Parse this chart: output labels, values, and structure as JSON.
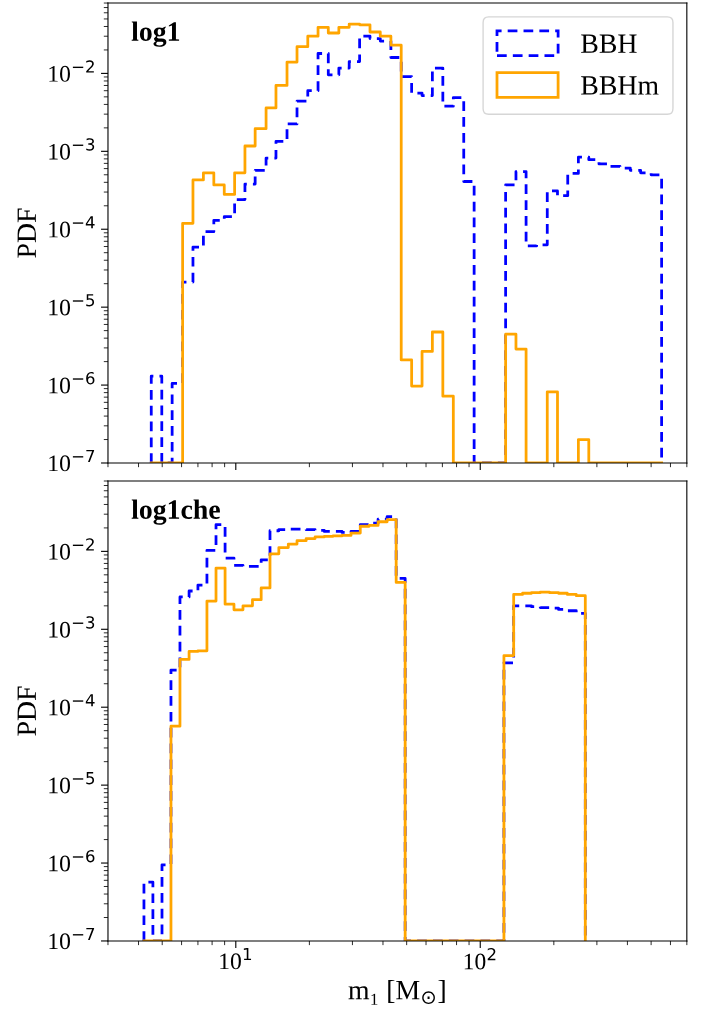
{
  "chart_data": [
    {
      "type": "histogram",
      "log": "xy",
      "ylabel": "PDF",
      "annotations": [
        "log1"
      ],
      "legend": "top right",
      "tick_labels": "y",
      "xlim": [
        3,
        700
      ],
      "ylim": [
        1e-07,
        0.08
      ],
      "yticks": [
        {
          "value": 1e-07,
          "label": "10$^{−7}$"
        },
        {
          "value": 1e-06,
          "label": "10$^{−6}$"
        },
        {
          "value": 1e-05,
          "label": "10$^{−5}$"
        },
        {
          "value": 0.0001,
          "label": "10$^{−4}$"
        },
        {
          "value": 0.001,
          "label": "10$^{−3}$"
        },
        {
          "value": 0.01,
          "label": "10$^{−2}$"
        }
      ],
      "bins": [
        4.51,
        4.98,
        5.49,
        6.06,
        6.68,
        7.37,
        8.13,
        8.97,
        9.89,
        10.9,
        12.0,
        13.3,
        14.6,
        16.2,
        17.8,
        19.7,
        21.7,
        23.9,
        26.4,
        29.1,
        32.1,
        35.4,
        39.0,
        43.1,
        47.5,
        52.4,
        57.8,
        63.7,
        70.3,
        77.6,
        85.6,
        94.4,
        104,
        115,
        127,
        140,
        154,
        170,
        188,
        207,
        228,
        252,
        278,
        306,
        338,
        373,
        411,
        453,
        500,
        552
      ],
      "series": [
        {
          "name": "BBH",
          "color": "#0000ff",
          "line_style": "dashed",
          "values": [
            1.3e-06,
            null,
            1.05e-06,
            2.1e-05,
            5.9e-05,
            9.3e-05,
            0.00013,
            0.000145,
            0.00024,
            0.00038,
            0.00057,
            0.00082,
            0.00134,
            0.00225,
            0.0044,
            0.006,
            0.018,
            0.0096,
            0.0117,
            0.0142,
            0.03,
            0.028,
            0.026,
            0.016,
            0.0091,
            0.0056,
            0.0052,
            0.0117,
            0.0038,
            0.0049,
            0.00041,
            null,
            null,
            null,
            0.00037,
            0.00055,
            6.1e-05,
            6.3e-05,
            0.00031,
            0.00027,
            0.00052,
            0.00084,
            0.00078,
            0.00069,
            0.00064,
            0.00061,
            0.00057,
            0.00053,
            0.0005
          ]
        },
        {
          "name": "BBHm",
          "color": "#ffa500",
          "line_style": "solid",
          "values": [
            null,
            null,
            null,
            0.000119,
            0.00043,
            0.00053,
            0.00037,
            0.00028,
            0.00053,
            0.00117,
            0.00195,
            0.0036,
            0.007,
            0.014,
            0.022,
            0.03,
            0.039,
            0.033,
            0.039,
            0.043,
            0.042,
            0.034,
            0.03,
            0.023,
            2.1e-06,
            9.7e-07,
            2.7e-06,
            4.8e-06,
            7.2e-07,
            null,
            null,
            null,
            null,
            null,
            4.5e-06,
            2.9e-06,
            null,
            null,
            8.2e-07,
            null,
            null,
            2e-07,
            null,
            null,
            null,
            null,
            null,
            null,
            null
          ]
        }
      ]
    },
    {
      "type": "histogram",
      "log": "xy",
      "ylabel": "PDF",
      "xlabel": "m₁ [M$_{⊙}$]",
      "annotations": [
        "log1che"
      ],
      "xlim": [
        3,
        700
      ],
      "xticks": [
        {
          "value": 10,
          "label": "10$^{1}$"
        },
        {
          "value": 100,
          "label": "10$^{2}$"
        }
      ],
      "ylim": [
        1e-07,
        0.08
      ],
      "yticks": [
        {
          "value": 1e-07,
          "label": "10$^{−7}$"
        },
        {
          "value": 1e-06,
          "label": "10$^{−6}$"
        },
        {
          "value": 1e-05,
          "label": "10$^{−5}$"
        },
        {
          "value": 0.0001,
          "label": "10$^{−4}$"
        },
        {
          "value": 0.001,
          "label": "10$^{−3}$"
        },
        {
          "value": 0.01,
          "label": "10$^{−2}$"
        }
      ],
      "bins": [
        4.21,
        4.58,
        4.99,
        5.43,
        5.91,
        6.44,
        7.0,
        7.62,
        8.3,
        9.04,
        9.83,
        10.7,
        11.7,
        12.7,
        13.8,
        15.0,
        16.4,
        17.8,
        19.4,
        21.1,
        23.0,
        25.0,
        27.2,
        29.6,
        32.3,
        35.1,
        38.2,
        41.6,
        45.3,
        49.3,
        53.7,
        58.5,
        63.6,
        69.3,
        75.4,
        82.1,
        89.4,
        97.3,
        106,
        115,
        125,
        137,
        149,
        162,
        176,
        192,
        209,
        227,
        247,
        269
      ],
      "series": [
        {
          "color": "#0000ff",
          "line_style": "dashed",
          "values": [
            5.7e-07,
            null,
            9.5e-07,
            0.0003,
            0.0026,
            0.0031,
            0.0037,
            0.0103,
            0.022,
            0.0082,
            0.0066,
            0.0064,
            0.0064,
            0.0078,
            0.0184,
            0.019,
            0.0193,
            0.0193,
            0.019,
            0.0186,
            0.018,
            0.018,
            0.0175,
            0.018,
            0.022,
            0.023,
            0.026,
            0.028,
            0.0045,
            null,
            null,
            null,
            null,
            null,
            null,
            null,
            null,
            null,
            null,
            null,
            0.00037,
            0.002,
            0.002,
            0.00195,
            0.0019,
            0.00187,
            0.0018,
            0.00173,
            0.0016
          ]
        },
        {
          "color": "#ffa500",
          "line_style": "solid",
          "values": [
            null,
            null,
            null,
            5.7e-05,
            0.00041,
            0.00052,
            0.00053,
            0.0023,
            0.0061,
            0.0021,
            0.00178,
            0.002,
            0.0024,
            0.0034,
            0.0093,
            0.0112,
            0.0124,
            0.0137,
            0.0146,
            0.0153,
            0.0156,
            0.0158,
            0.016,
            0.0172,
            0.021,
            0.0215,
            0.024,
            0.0255,
            0.004,
            null,
            null,
            null,
            null,
            null,
            null,
            null,
            null,
            null,
            null,
            null,
            0.00046,
            0.0028,
            0.0029,
            0.00295,
            0.003,
            0.00295,
            0.0029,
            0.0028,
            0.0027
          ]
        }
      ]
    }
  ]
}
